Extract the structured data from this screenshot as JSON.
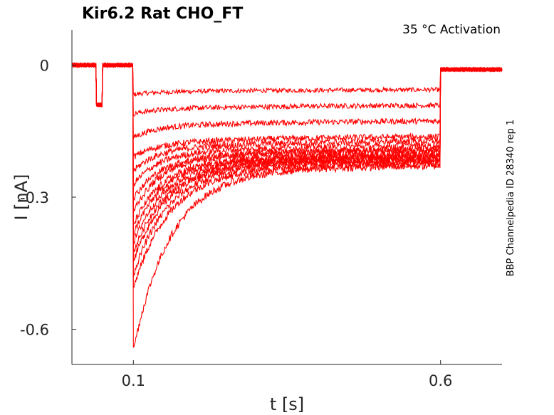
{
  "chart_data": {
    "type": "line",
    "title": "Kir6.2  Rat  CHO_FT",
    "annotation": "35 °C  Activation",
    "side_label": "BBP Channelpedia ID 28340 rep 1",
    "xlabel": "t [s]",
    "ylabel": "I [nA]",
    "xlim": [
      0.0,
      0.7
    ],
    "ylim": [
      -0.68,
      0.08
    ],
    "x_ticks": [
      0.1,
      0.6
    ],
    "x_tick_labels": [
      "0.1",
      "0.6"
    ],
    "y_ticks": [
      0,
      -0.3,
      -0.6
    ],
    "y_tick_labels": [
      "0",
      "-0.3",
      "-0.6"
    ],
    "grid": false,
    "series_color": "#ff0000",
    "protocol": {
      "prepulse_start": 0.04,
      "prepulse_end": 0.05,
      "prepulse_level": -0.09,
      "step_start": 0.1,
      "step_end": 0.6,
      "tail_level": -0.01,
      "end": 0.7
    },
    "series": [
      {
        "peak": -0.06,
        "steady": -0.055
      },
      {
        "peak": -0.1,
        "steady": -0.09
      },
      {
        "peak": -0.15,
        "steady": -0.125
      },
      {
        "peak": -0.19,
        "steady": -0.16
      },
      {
        "peak": -0.22,
        "steady": -0.17
      },
      {
        "peak": -0.25,
        "steady": -0.18
      },
      {
        "peak": -0.28,
        "steady": -0.19
      },
      {
        "peak": -0.31,
        "steady": -0.19
      },
      {
        "peak": -0.34,
        "steady": -0.2
      },
      {
        "peak": -0.36,
        "steady": -0.2
      },
      {
        "peak": -0.38,
        "steady": -0.205
      },
      {
        "peak": -0.4,
        "steady": -0.21
      },
      {
        "peak": -0.42,
        "steady": -0.21
      },
      {
        "peak": -0.45,
        "steady": -0.215
      },
      {
        "peak": -0.48,
        "steady": -0.22
      },
      {
        "peak": -0.62,
        "steady": -0.225
      }
    ]
  }
}
